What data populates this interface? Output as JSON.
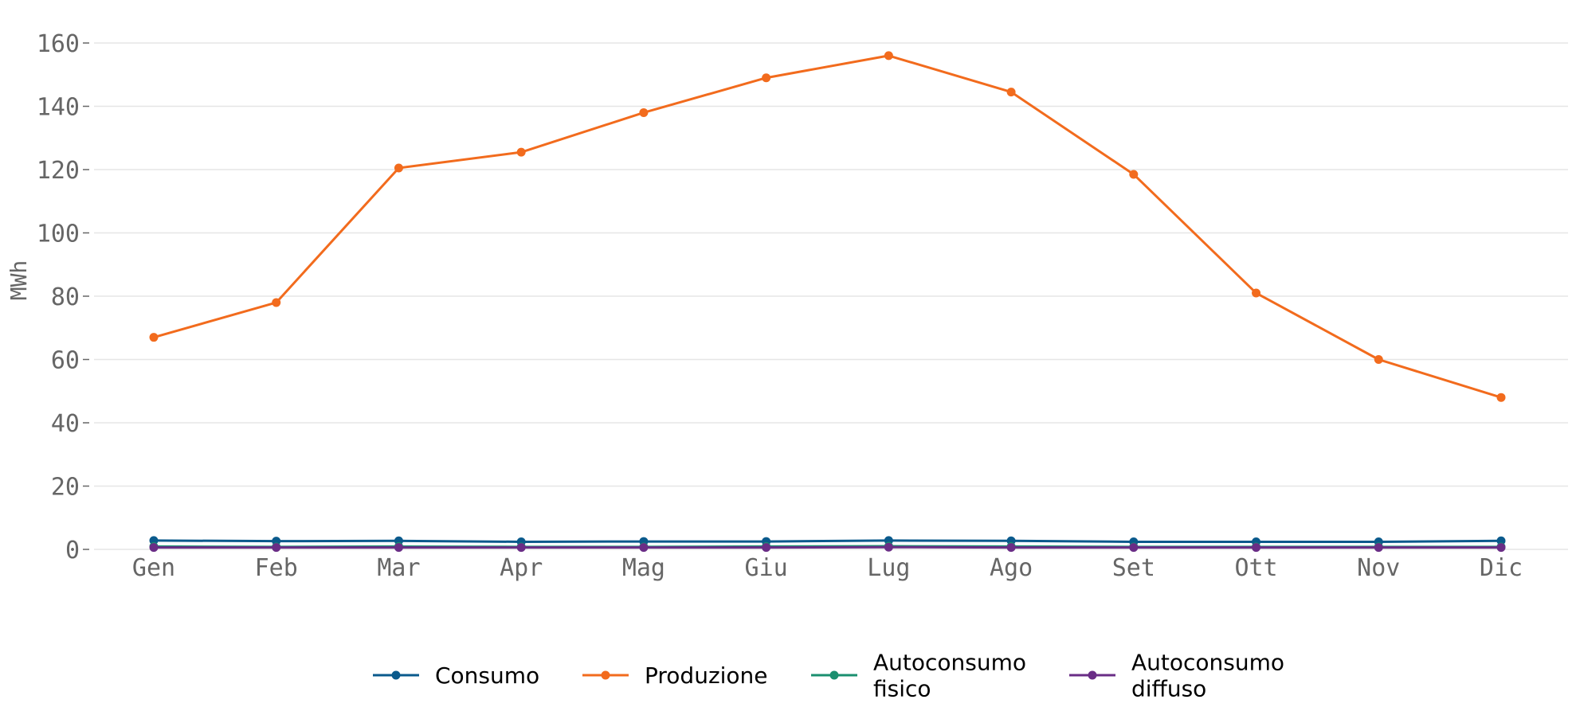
{
  "chart_data": {
    "type": "line",
    "categories": [
      "Gen",
      "Feb",
      "Mar",
      "Apr",
      "Mag",
      "Giu",
      "Lug",
      "Ago",
      "Set",
      "Ott",
      "Nov",
      "Dic"
    ],
    "ylabel": "MWh",
    "ylim": [
      0,
      165
    ],
    "yticks": [
      0,
      20,
      40,
      60,
      80,
      100,
      120,
      140,
      160
    ],
    "grid": true,
    "legend_position": "bottom",
    "series": [
      {
        "name": "Consumo",
        "color": "#0a5a8c",
        "values": [
          2.8,
          2.6,
          2.7,
          2.4,
          2.5,
          2.5,
          2.8,
          2.7,
          2.4,
          2.4,
          2.4,
          2.7
        ]
      },
      {
        "name": "Produzione",
        "color": "#f26b1d",
        "values": [
          67,
          78,
          120.5,
          125.5,
          138,
          149,
          156,
          144.5,
          118.5,
          81,
          60,
          48
        ]
      },
      {
        "name": "Autoconsumo fisico",
        "color": "#1a8f6f",
        "values": [
          0.9,
          0.8,
          0.9,
          0.8,
          0.8,
          0.9,
          1.0,
          0.9,
          0.8,
          0.8,
          0.8,
          0.8
        ]
      },
      {
        "name": "Autoconsumo diffuso",
        "color": "#6a2d86",
        "values": [
          0.6,
          0.6,
          0.6,
          0.6,
          0.6,
          0.6,
          0.7,
          0.6,
          0.6,
          0.6,
          0.6,
          0.6
        ]
      }
    ],
    "legend": [
      {
        "lines": [
          "Consumo"
        ]
      },
      {
        "lines": [
          "Produzione"
        ]
      },
      {
        "lines": [
          "Autoconsumo",
          "fisico"
        ]
      },
      {
        "lines": [
          "Autoconsumo",
          "diffuso"
        ]
      }
    ]
  }
}
